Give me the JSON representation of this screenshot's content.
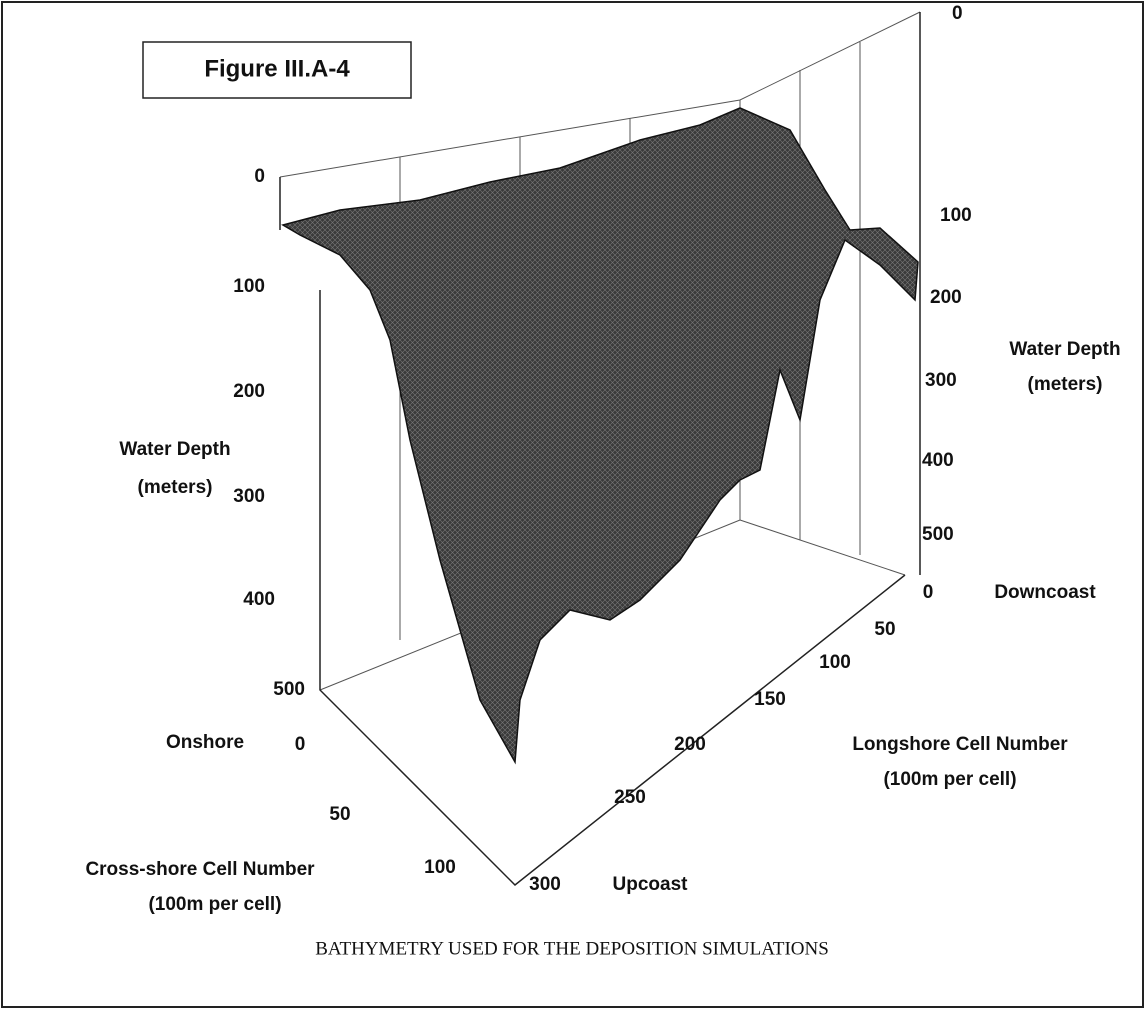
{
  "figure_label": "Figure III.A-4",
  "left_axis": {
    "title": [
      "Water Depth",
      "(meters)"
    ],
    "ticks": [
      0,
      100,
      200,
      300,
      400,
      500
    ]
  },
  "right_axis": {
    "title": [
      "Water Depth",
      "(meters)"
    ],
    "ticks": [
      0,
      100,
      200,
      300,
      400,
      500
    ]
  },
  "cross_shore_axis": {
    "title": [
      "Cross-shore Cell Number",
      "(100m per cell)"
    ],
    "start_label": "Onshore",
    "ticks": [
      0,
      50,
      100
    ]
  },
  "longshore_axis": {
    "title": [
      "Longshore Cell Number",
      "(100m per cell)"
    ],
    "start_label": "Downcoast",
    "end_label": "Upcoast",
    "ticks": [
      0,
      50,
      100,
      150,
      200,
      250,
      300
    ]
  },
  "caption": "BATHYMETRY USED FOR THE DEPOSITION SIMULATIONS"
}
